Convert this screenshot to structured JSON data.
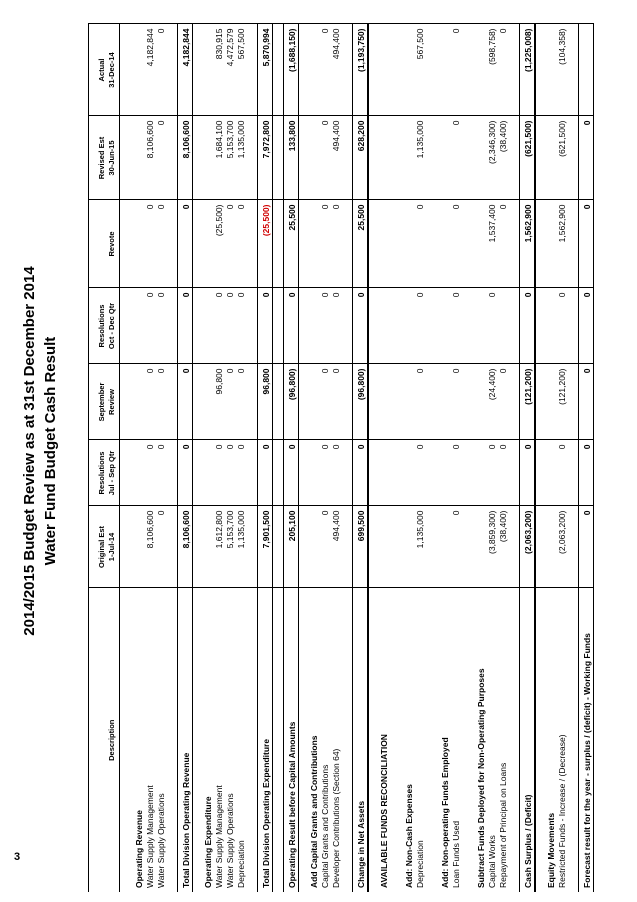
{
  "page_number": "3",
  "title_line1": "2014/2015 Budget Review as at 31st December 2014",
  "title_line2": "Water Fund Budget Cash Result",
  "headers": {
    "description": "Description",
    "orig1": "Original Est",
    "orig2": "1-Jul-14",
    "res1a": "Resolutions",
    "res1b": "Jul - Sep Qtr",
    "sep1": "September",
    "sep2": "Review",
    "res2a": "Resolutions",
    "res2b": "Oct - Dec Qtr",
    "revote": "Revote",
    "rev1": "Revised Est",
    "rev2": "30-Jun-15",
    "act1": "Actual",
    "act2": "31-Dec-14"
  },
  "operating_revenue": {
    "heading": "Operating Revenue",
    "rows": [
      {
        "label": "Water Supply Management",
        "c": [
          "8,106,600",
          "0",
          "0",
          "0",
          "0",
          "8,106,600",
          "4,182,844"
        ]
      },
      {
        "label": "Water Supply Operations",
        "c": [
          "0",
          "0",
          "0",
          "0",
          "0",
          "0",
          "0"
        ]
      }
    ]
  },
  "total_revenue": {
    "label": "Total Division Operating Revenue",
    "c": [
      "8,106,600",
      "0",
      "0",
      "0",
      "0",
      "8,106,600",
      "4,182,844"
    ]
  },
  "operating_expenditure": {
    "heading": "Operating Expenditure",
    "rows": [
      {
        "label": "Water Supply Management",
        "c": [
          "1,612,800",
          "0",
          "96,800",
          "0",
          "(25,500)",
          "1,684,100",
          "830,915"
        ]
      },
      {
        "label": "Water Supply Operations",
        "c": [
          "5,153,700",
          "0",
          "0",
          "0",
          "0",
          "5,153,700",
          "4,472,579"
        ]
      },
      {
        "label": "Depreciation",
        "c": [
          "1,135,000",
          "0",
          "0",
          "0",
          "0",
          "1,135,000",
          "567,500"
        ]
      }
    ]
  },
  "total_expenditure": {
    "label": "Total Division Operating Expenditure",
    "c": [
      "7,901,500",
      "0",
      "96,800",
      "0",
      "(25,500)",
      "7,972,800",
      "5,870,994"
    ]
  },
  "operating_result": {
    "label": "Operating Result before Capital Amounts",
    "c": [
      "205,100",
      "0",
      "(96,800)",
      "0",
      "25,500",
      "133,800",
      "(1,688,150)"
    ]
  },
  "capital": {
    "heading": "Add Capital Grants and Contributions",
    "rows": [
      {
        "label": "Capital Grants and Contributions",
        "c": [
          "0",
          "0",
          "0",
          "0",
          "0",
          "0",
          "0"
        ]
      },
      {
        "label": "Developer Contributions (Section 64)",
        "c": [
          "494,400",
          "0",
          "0",
          "0",
          "0",
          "494,400",
          "494,400"
        ]
      }
    ]
  },
  "change_net_assets": {
    "label": "Change in Net Assets",
    "c": [
      "699,500",
      "0",
      "(96,800)",
      "0",
      "25,500",
      "628,200",
      "(1,193,750)"
    ]
  },
  "available_funds": "AVAILABLE FUNDS RECONCILIATION",
  "non_cash": {
    "heading": "Add:  Non-Cash Expenses",
    "rows": [
      {
        "label": "Depreciation",
        "c": [
          "1,135,000",
          "0",
          "0",
          "0",
          "0",
          "1,135,000",
          "567,500"
        ]
      }
    ]
  },
  "non_operating": {
    "heading": "Add:  Non-operating Funds Employed",
    "rows": [
      {
        "label": "Loan Funds Used",
        "c": [
          "0",
          "0",
          "0",
          "0",
          "0",
          "0",
          "0"
        ]
      }
    ]
  },
  "subtract": {
    "heading": "Subtract Funds Deployed for Non-Operating Purposes",
    "rows": [
      {
        "label": "Capital Works",
        "c": [
          "(3,859,300)",
          "0",
          "(24,400)",
          "0",
          "1,537,400",
          "(2,346,300)",
          "(598,758)"
        ]
      },
      {
        "label": "Repayment of Principal on Loans",
        "c": [
          "(38,400)",
          "0",
          "0",
          "",
          "0",
          "(38,400)",
          "0"
        ]
      }
    ]
  },
  "cash_surplus": {
    "label": "Cash Surplus / (Deficit)",
    "c": [
      "(2,063,200)",
      "0",
      "(121,200)",
      "0",
      "1,562,900",
      "(621,500)",
      "(1,225,008)"
    ]
  },
  "equity": {
    "heading": "Equity Movements",
    "rows": [
      {
        "label": "Restricted Funds - Increase / (Decrease)",
        "c": [
          "(2,063,200)",
          "0",
          "(121,200)",
          "0",
          "1,562,900",
          "(621,500)",
          "(104,358)"
        ]
      }
    ]
  },
  "forecast": {
    "label": "Forecast result for the year - surplus / (deficit) - Working Funds",
    "c": [
      "0",
      "0",
      "0",
      "0",
      "0",
      "0",
      ""
    ]
  }
}
